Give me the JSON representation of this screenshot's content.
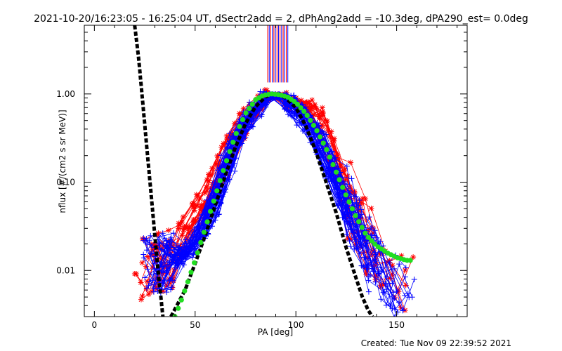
{
  "chart_data": {
    "type": "scatter",
    "title": "2021-10-20/16:23:05 - 16:25:04 UT, dSectr2add = 2, dPhAng2add = -10.3deg, dPA290_est=  0.0deg",
    "xlabel": "PA [deg]",
    "ylabel": "nflux [#/(cm2 s sr MeV)]",
    "xlim": [
      -5,
      185
    ],
    "ylim": [
      0.003,
      6
    ],
    "y_scale": "log",
    "x_ticks": [
      0,
      50,
      100,
      150
    ],
    "x_tick_labels": [
      "0",
      "50",
      "100",
      "150"
    ],
    "y_ticks": [
      0.01,
      0.1,
      1.0
    ],
    "y_tick_labels": [
      "0.01",
      "0.10",
      "1.00"
    ],
    "grid": false,
    "series": [
      {
        "name": "black dashed fit (narrow)",
        "color": "#000000",
        "style": "thick-dashed",
        "x": [
          20,
          22,
          24,
          26,
          28,
          30,
          32,
          33,
          34
        ],
        "y": [
          6,
          2.5,
          0.8,
          0.25,
          0.08,
          0.025,
          0.008,
          0.005,
          0.003
        ]
      },
      {
        "name": "black dashed fit (gaussian)",
        "color": "#000000",
        "style": "thick-dashed",
        "x": [
          38,
          45,
          50,
          55,
          60,
          65,
          70,
          75,
          80,
          85,
          88,
          92,
          95,
          100,
          105,
          110,
          115,
          120,
          125,
          130,
          133,
          136,
          138
        ],
        "y": [
          0.003,
          0.006,
          0.012,
          0.025,
          0.055,
          0.12,
          0.25,
          0.46,
          0.72,
          0.93,
          1.0,
          0.97,
          0.9,
          0.7,
          0.43,
          0.22,
          0.1,
          0.045,
          0.018,
          0.008,
          0.005,
          0.0035,
          0.003
        ]
      },
      {
        "name": "green dotted fit",
        "color": "#22dd22",
        "style": "dots",
        "x": [
          40,
          43,
          46,
          50,
          55,
          60,
          65,
          70,
          75,
          80,
          84,
          88,
          92,
          96,
          100,
          105,
          110,
          115,
          120,
          125,
          130,
          135,
          140,
          145,
          150,
          155,
          158
        ],
        "y": [
          0.003,
          0.0045,
          0.007,
          0.013,
          0.03,
          0.07,
          0.16,
          0.34,
          0.6,
          0.86,
          0.97,
          1.0,
          0.98,
          0.92,
          0.8,
          0.6,
          0.4,
          0.24,
          0.13,
          0.07,
          0.04,
          0.025,
          0.019,
          0.016,
          0.014,
          0.013,
          0.013
        ]
      },
      {
        "name": "blue measured profiles",
        "color": "#0000ff",
        "style": "line-plus",
        "x": [
          30,
          40,
          50,
          60,
          70,
          80,
          90,
          100,
          110,
          120,
          130,
          140,
          150
        ],
        "y": [
          0.012,
          0.013,
          0.02,
          0.06,
          0.3,
          0.7,
          1.0,
          0.7,
          0.35,
          0.1,
          0.03,
          0.012,
          0.006
        ]
      },
      {
        "name": "red measured profiles",
        "color": "#ff0000",
        "style": "line-star",
        "x": [
          20,
          30,
          40,
          50,
          60,
          70,
          80,
          90,
          100,
          110,
          120,
          130,
          140,
          150
        ],
        "y": [
          0.01,
          0.012,
          0.015,
          0.045,
          0.1,
          0.35,
          0.75,
          1.0,
          0.75,
          0.65,
          0.15,
          0.04,
          0.012,
          0.007
        ]
      }
    ],
    "vertical_markers": {
      "x_range": [
        86,
        96
      ],
      "colors": [
        "#ff0000",
        "#0000ff"
      ],
      "y_from": 1.35
    },
    "footer": "Created: Tue Nov 09 22:39:52 2021"
  }
}
